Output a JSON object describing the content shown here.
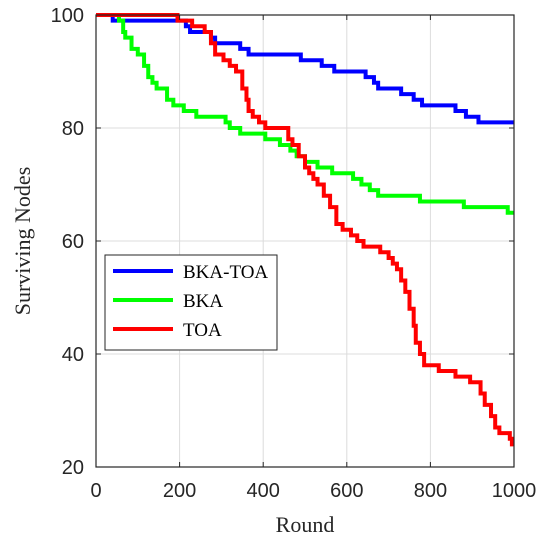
{
  "chart_data": {
    "type": "line",
    "title": "",
    "xlabel": "Round",
    "ylabel": "Surviving Nodes",
    "xlim": [
      0,
      1000
    ],
    "ylim": [
      20,
      100
    ],
    "xticks": [
      0,
      200,
      400,
      600,
      800,
      1000
    ],
    "yticks": [
      20,
      40,
      60,
      80,
      100
    ],
    "grid": true,
    "legend_position": "middle-left",
    "series": [
      {
        "name": "BKA-TOA",
        "color": "#0000ff",
        "points": [
          [
            0,
            100
          ],
          [
            40,
            100
          ],
          [
            40,
            99
          ],
          [
            215,
            99
          ],
          [
            215,
            98
          ],
          [
            225,
            98
          ],
          [
            225,
            97
          ],
          [
            275,
            97
          ],
          [
            275,
            96
          ],
          [
            285,
            96
          ],
          [
            285,
            95
          ],
          [
            345,
            95
          ],
          [
            345,
            94
          ],
          [
            365,
            94
          ],
          [
            365,
            93
          ],
          [
            490,
            93
          ],
          [
            490,
            92
          ],
          [
            540,
            92
          ],
          [
            540,
            91
          ],
          [
            570,
            91
          ],
          [
            570,
            90
          ],
          [
            645,
            90
          ],
          [
            645,
            89
          ],
          [
            665,
            89
          ],
          [
            665,
            88
          ],
          [
            675,
            88
          ],
          [
            675,
            87
          ],
          [
            730,
            87
          ],
          [
            730,
            86
          ],
          [
            760,
            86
          ],
          [
            760,
            85
          ],
          [
            780,
            85
          ],
          [
            780,
            84
          ],
          [
            860,
            84
          ],
          [
            860,
            83
          ],
          [
            885,
            83
          ],
          [
            885,
            82
          ],
          [
            915,
            82
          ],
          [
            915,
            81
          ],
          [
            1000,
            81
          ]
        ]
      },
      {
        "name": "BKA",
        "color": "#00ff00",
        "points": [
          [
            0,
            100
          ],
          [
            55,
            100
          ],
          [
            55,
            99
          ],
          [
            65,
            99
          ],
          [
            65,
            97
          ],
          [
            70,
            97
          ],
          [
            70,
            96
          ],
          [
            85,
            96
          ],
          [
            85,
            94
          ],
          [
            100,
            94
          ],
          [
            100,
            93
          ],
          [
            115,
            93
          ],
          [
            115,
            91
          ],
          [
            125,
            91
          ],
          [
            125,
            89
          ],
          [
            135,
            89
          ],
          [
            135,
            88
          ],
          [
            145,
            88
          ],
          [
            145,
            87
          ],
          [
            170,
            87
          ],
          [
            170,
            85
          ],
          [
            185,
            85
          ],
          [
            185,
            84
          ],
          [
            210,
            84
          ],
          [
            210,
            83
          ],
          [
            240,
            83
          ],
          [
            240,
            82
          ],
          [
            310,
            82
          ],
          [
            310,
            81
          ],
          [
            320,
            81
          ],
          [
            320,
            80
          ],
          [
            345,
            80
          ],
          [
            345,
            79
          ],
          [
            405,
            79
          ],
          [
            405,
            78
          ],
          [
            440,
            78
          ],
          [
            440,
            77
          ],
          [
            465,
            77
          ],
          [
            465,
            76
          ],
          [
            480,
            76
          ],
          [
            480,
            75
          ],
          [
            500,
            75
          ],
          [
            500,
            74
          ],
          [
            530,
            74
          ],
          [
            530,
            73
          ],
          [
            565,
            73
          ],
          [
            565,
            72
          ],
          [
            615,
            72
          ],
          [
            615,
            71
          ],
          [
            635,
            71
          ],
          [
            635,
            70
          ],
          [
            655,
            70
          ],
          [
            655,
            69
          ],
          [
            675,
            69
          ],
          [
            675,
            68
          ],
          [
            775,
            68
          ],
          [
            775,
            67
          ],
          [
            880,
            67
          ],
          [
            880,
            66
          ],
          [
            985,
            66
          ],
          [
            985,
            65
          ],
          [
            1000,
            65
          ]
        ]
      },
      {
        "name": "TOA",
        "color": "#ff0000",
        "points": [
          [
            0,
            100
          ],
          [
            195,
            100
          ],
          [
            195,
            99
          ],
          [
            230,
            99
          ],
          [
            230,
            98
          ],
          [
            260,
            98
          ],
          [
            260,
            97
          ],
          [
            275,
            97
          ],
          [
            275,
            95
          ],
          [
            285,
            95
          ],
          [
            285,
            93
          ],
          [
            305,
            93
          ],
          [
            305,
            92
          ],
          [
            320,
            92
          ],
          [
            320,
            91
          ],
          [
            335,
            91
          ],
          [
            335,
            90
          ],
          [
            350,
            90
          ],
          [
            350,
            87
          ],
          [
            360,
            87
          ],
          [
            360,
            85
          ],
          [
            365,
            85
          ],
          [
            365,
            83
          ],
          [
            375,
            83
          ],
          [
            375,
            82
          ],
          [
            390,
            82
          ],
          [
            390,
            81
          ],
          [
            405,
            81
          ],
          [
            405,
            80
          ],
          [
            460,
            80
          ],
          [
            460,
            78
          ],
          [
            470,
            78
          ],
          [
            470,
            77
          ],
          [
            485,
            77
          ],
          [
            485,
            75
          ],
          [
            500,
            75
          ],
          [
            500,
            73
          ],
          [
            510,
            73
          ],
          [
            510,
            72
          ],
          [
            520,
            72
          ],
          [
            520,
            71
          ],
          [
            530,
            71
          ],
          [
            530,
            70
          ],
          [
            545,
            70
          ],
          [
            545,
            68
          ],
          [
            560,
            68
          ],
          [
            560,
            66
          ],
          [
            575,
            66
          ],
          [
            575,
            63
          ],
          [
            590,
            63
          ],
          [
            590,
            62
          ],
          [
            610,
            62
          ],
          [
            610,
            61
          ],
          [
            625,
            61
          ],
          [
            625,
            60
          ],
          [
            640,
            60
          ],
          [
            640,
            59
          ],
          [
            680,
            59
          ],
          [
            680,
            58
          ],
          [
            700,
            58
          ],
          [
            700,
            57
          ],
          [
            710,
            57
          ],
          [
            710,
            56
          ],
          [
            720,
            56
          ],
          [
            720,
            55
          ],
          [
            730,
            55
          ],
          [
            730,
            53
          ],
          [
            740,
            53
          ],
          [
            740,
            51
          ],
          [
            750,
            51
          ],
          [
            750,
            48
          ],
          [
            760,
            48
          ],
          [
            760,
            45
          ],
          [
            765,
            45
          ],
          [
            765,
            42
          ],
          [
            775,
            42
          ],
          [
            775,
            40
          ],
          [
            785,
            40
          ],
          [
            785,
            38
          ],
          [
            820,
            38
          ],
          [
            820,
            37
          ],
          [
            860,
            37
          ],
          [
            860,
            36
          ],
          [
            895,
            36
          ],
          [
            895,
            35
          ],
          [
            920,
            35
          ],
          [
            920,
            33
          ],
          [
            930,
            33
          ],
          [
            930,
            31
          ],
          [
            945,
            31
          ],
          [
            945,
            29
          ],
          [
            955,
            29
          ],
          [
            955,
            27
          ],
          [
            965,
            27
          ],
          [
            965,
            26
          ],
          [
            990,
            26
          ],
          [
            990,
            25
          ],
          [
            995,
            25
          ],
          [
            995,
            24
          ],
          [
            1000,
            24
          ]
        ]
      }
    ]
  }
}
